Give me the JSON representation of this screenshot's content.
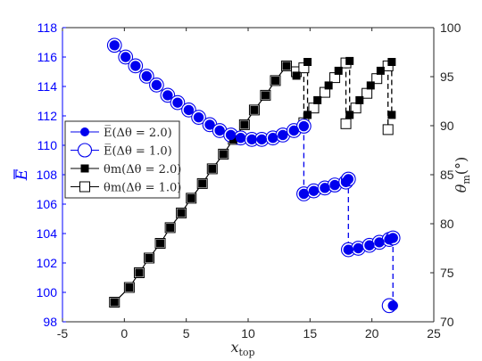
{
  "chart_data": {
    "type": "scatter",
    "colors": {
      "left_axis": "#0000ff",
      "left_series": "#0000ee",
      "right_series": "#000000"
    },
    "xlim": [
      -5,
      25
    ],
    "ylim_left": [
      98,
      118
    ],
    "ylim_right": [
      70,
      100
    ],
    "x_ticks": [
      "-5",
      "0",
      "5",
      "10",
      "15",
      "20",
      "25"
    ],
    "y_left_ticks": [
      "98",
      "100",
      "102",
      "104",
      "106",
      "108",
      "110",
      "112",
      "114",
      "116",
      "118"
    ],
    "y_right_ticks": [
      "70",
      "75",
      "80",
      "85",
      "90",
      "95",
      "100"
    ],
    "xlabel": {
      "main": "x",
      "sub": "top"
    },
    "ylabel_left": {
      "main": "E"
    },
    "ylabel_right": {
      "main": "θ",
      "sub": "m",
      "suffix": "(°)"
    },
    "legend": {
      "position": "center-left",
      "entries": [
        "E̅(Δθ = 2.0)",
        "E̅(Δθ = 1.0)",
        "θm(Δθ = 2.0)",
        "θm(Δθ = 1.0)"
      ]
    },
    "series": [
      {
        "name": "E̅(Δθ = 2.0)",
        "axis": "left",
        "marker": "filled-circle",
        "connect_jumps": true,
        "x": [
          -0.8,
          0.1,
          0.9,
          1.8,
          2.6,
          3.5,
          4.3,
          5.2,
          6.0,
          6.9,
          7.7,
          8.6,
          9.4,
          10.3,
          11.1,
          12.0,
          12.8,
          13.7,
          14.5,
          14.5,
          15.3,
          16.2,
          17.0,
          17.9,
          18.1,
          18.1,
          18.9,
          19.8,
          20.6,
          21.4,
          21.7,
          21.7
        ],
        "y": [
          116.8,
          116.0,
          115.4,
          114.7,
          114.1,
          113.4,
          112.9,
          112.4,
          111.9,
          111.4,
          111.0,
          110.7,
          110.5,
          110.4,
          110.4,
          110.5,
          110.7,
          111.0,
          111.3,
          106.7,
          106.9,
          107.1,
          107.3,
          107.5,
          107.7,
          102.9,
          103.0,
          103.2,
          103.4,
          103.6,
          103.7,
          99.1
        ]
      },
      {
        "name": "E̅(Δθ = 1.0)",
        "axis": "left",
        "marker": "open-circle",
        "connect_jumps": false,
        "x": [
          -0.8,
          0.1,
          0.9,
          1.8,
          2.6,
          3.5,
          4.3,
          5.2,
          6.0,
          6.9,
          7.7,
          8.6,
          9.4,
          10.3,
          11.1,
          12.0,
          12.8,
          13.7,
          14.5,
          14.5,
          15.3,
          16.2,
          17.0,
          17.9,
          18.1,
          18.1,
          18.9,
          19.8,
          20.6,
          21.4,
          21.7,
          21.4
        ],
        "y": [
          116.8,
          116.0,
          115.4,
          114.7,
          114.1,
          113.4,
          112.9,
          112.4,
          111.9,
          111.4,
          111.0,
          110.7,
          110.5,
          110.4,
          110.4,
          110.5,
          110.7,
          111.0,
          111.3,
          106.7,
          106.9,
          107.1,
          107.3,
          107.5,
          107.7,
          102.9,
          103.0,
          103.2,
          103.4,
          103.6,
          103.7,
          99.1
        ]
      },
      {
        "name": "θm(Δθ = 2.0)",
        "axis": "right",
        "marker": "filled-square",
        "connect_jumps": true,
        "x": [
          -0.8,
          0.4,
          1.2,
          2.0,
          2.9,
          3.7,
          4.6,
          5.4,
          6.3,
          7.1,
          8.0,
          8.8,
          9.7,
          10.5,
          11.4,
          12.2,
          13.1,
          13.9,
          14.8,
          14.8,
          15.6,
          16.5,
          17.3,
          18.2,
          18.2,
          19.0,
          19.9,
          20.7,
          21.6,
          21.6
        ],
        "y": [
          72.0,
          73.5,
          75.0,
          76.5,
          78.0,
          79.6,
          81.1,
          82.6,
          84.1,
          85.6,
          87.1,
          88.6,
          90.1,
          91.6,
          93.1,
          94.6,
          96.1,
          95.1,
          96.5,
          91.1,
          92.6,
          94.1,
          95.6,
          96.6,
          91.1,
          92.6,
          94.1,
          95.6,
          96.5,
          91.1
        ]
      },
      {
        "name": "θm(Δθ = 1.0)",
        "axis": "right",
        "marker": "open-square",
        "connect_jumps": true,
        "x": [
          -0.8,
          0.4,
          1.2,
          2.0,
          2.9,
          3.7,
          4.6,
          5.4,
          6.3,
          7.1,
          8.0,
          8.8,
          9.7,
          10.5,
          11.4,
          12.2,
          13.1,
          13.9,
          14.5,
          14.5,
          15.3,
          16.2,
          17.0,
          17.9,
          17.9,
          18.7,
          19.6,
          20.4,
          21.3,
          21.3
        ],
        "y": [
          72.0,
          73.5,
          75.0,
          76.5,
          78.0,
          79.6,
          81.1,
          82.6,
          84.1,
          85.6,
          87.1,
          88.6,
          90.1,
          91.6,
          93.1,
          94.6,
          96.1,
          95.5,
          95.9,
          90.3,
          91.8,
          93.4,
          94.9,
          96.4,
          90.2,
          91.8,
          93.3,
          94.8,
          96.1,
          89.6
        ]
      }
    ]
  }
}
